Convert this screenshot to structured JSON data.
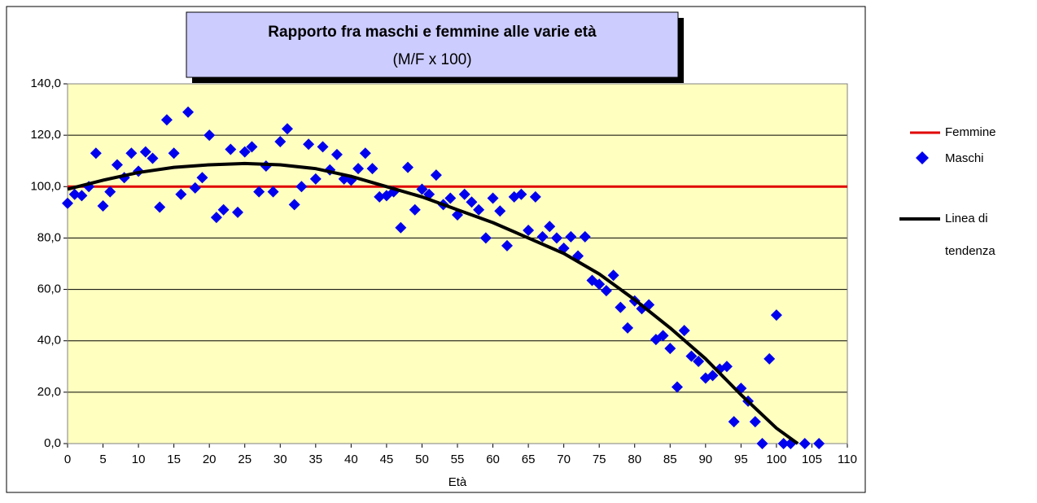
{
  "chart_data": {
    "type": "scatter",
    "title": "Rapporto fra maschi e femmine alle varie età",
    "subtitle": "(M/F x 100)",
    "x_label": "Età",
    "xlim": [
      0,
      110
    ],
    "xticks": [
      0,
      5,
      10,
      15,
      20,
      25,
      30,
      35,
      40,
      45,
      50,
      55,
      60,
      65,
      70,
      75,
      80,
      85,
      90,
      95,
      100,
      105,
      110
    ],
    "ylim": [
      0,
      140
    ],
    "yticks": [
      {
        "value": 0,
        "label": "0,0"
      },
      {
        "value": 20,
        "label": "20,0"
      },
      {
        "value": 40,
        "label": "40,0"
      },
      {
        "value": 60,
        "label": "60,0"
      },
      {
        "value": 80,
        "label": "80,0"
      },
      {
        "value": 100,
        "label": "100,0"
      },
      {
        "value": 120,
        "label": "120,0"
      },
      {
        "value": 140,
        "label": "140,0"
      }
    ],
    "grid": true,
    "reference_line": {
      "name": "Femmine",
      "value": 100,
      "color": "#e00000"
    },
    "series": [
      {
        "name": "Maschi",
        "color": "#0000ee",
        "x": [
          0,
          1,
          2,
          3,
          4,
          5,
          6,
          7,
          8,
          9,
          10,
          11,
          12,
          13,
          14,
          15,
          16,
          17,
          18,
          19,
          20,
          21,
          22,
          23,
          24,
          25,
          26,
          27,
          28,
          29,
          30,
          31,
          32,
          33,
          34,
          35,
          36,
          37,
          38,
          39,
          40,
          41,
          42,
          43,
          44,
          45,
          46,
          47,
          48,
          49,
          50,
          51,
          52,
          53,
          54,
          55,
          56,
          57,
          58,
          59,
          60,
          61,
          62,
          63,
          64,
          65,
          66,
          67,
          68,
          69,
          70,
          71,
          72,
          73,
          74,
          75,
          76,
          77,
          78,
          79,
          80,
          81,
          82,
          83,
          84,
          85,
          86,
          87,
          88,
          89,
          90,
          91,
          92,
          93,
          94,
          95,
          96,
          97,
          98,
          99,
          100,
          101,
          102,
          104,
          106
        ],
        "values": [
          93.5,
          97,
          96.5,
          100,
          113,
          92.5,
          98,
          108.5,
          103.5,
          113,
          106,
          113.5,
          111,
          92,
          126,
          113,
          97,
          129,
          99.5,
          103.5,
          120,
          88,
          91,
          114.5,
          90,
          113.5,
          115.5,
          98,
          108,
          98,
          117.5,
          122.5,
          93,
          100,
          116.5,
          103,
          115.5,
          106.5,
          112.5,
          103,
          102.5,
          107,
          113,
          107,
          96,
          96.5,
          98,
          84,
          107.5,
          91,
          99,
          97,
          104.5,
          93,
          95.5,
          89,
          97,
          94,
          91,
          80,
          95.5,
          90.5,
          77,
          96,
          97,
          83,
          96,
          80.5,
          84.5,
          80,
          76,
          80.5,
          73,
          80.5,
          63.5,
          62,
          59.5,
          65.5,
          53,
          45,
          55.5,
          52.5,
          54,
          40.5,
          42,
          37,
          22,
          44,
          34,
          32,
          25.5,
          26.5,
          29,
          30,
          8.5,
          21.5,
          16.5,
          8.5,
          0,
          33,
          50,
          0,
          0,
          0,
          0
        ]
      },
      {
        "name": "Linea di tendenza",
        "color": "#000000",
        "x": [
          0,
          5,
          10,
          15,
          20,
          25,
          30,
          35,
          40,
          45,
          50,
          55,
          60,
          65,
          70,
          75,
          80,
          85,
          90,
          95,
          100,
          103
        ],
        "values": [
          99,
          102.5,
          105.5,
          107.5,
          108.5,
          109,
          108.5,
          107,
          104,
          100,
          96,
          91,
          86,
          80,
          74,
          66,
          56,
          45,
          33,
          19,
          6,
          0
        ]
      }
    ]
  }
}
